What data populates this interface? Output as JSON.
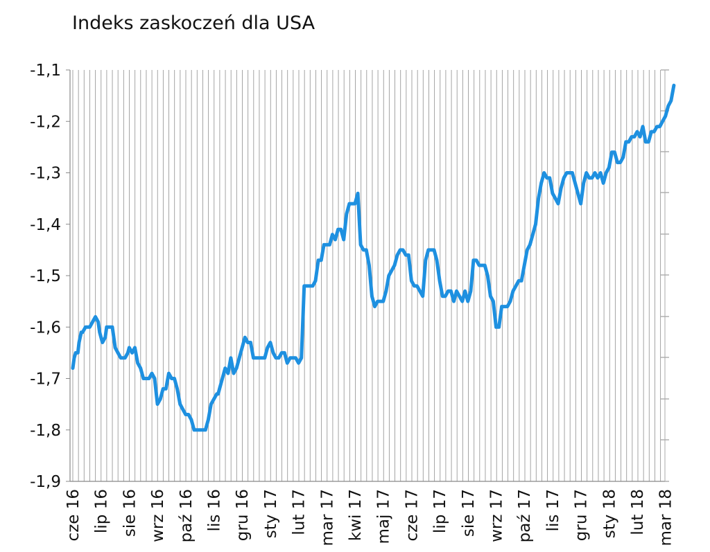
{
  "chart_data": {
    "type": "line",
    "title": "Indeks zaskoczeń dla USA",
    "xlabel": "",
    "ylabel": "",
    "ylim": [
      -1.9,
      -1.1
    ],
    "yticks": [
      "-1,1",
      "-1,2",
      "-1,3",
      "-1,4",
      "-1,5",
      "-1,6",
      "-1,7",
      "-1,8",
      "-1,9"
    ],
    "xticks": [
      "cze 16",
      "lip 16",
      "sie 16",
      "wrz 16",
      "paź 16",
      "lis 16",
      "gru 16",
      "sty 17",
      "lut 17",
      "mar 17",
      "kwi 17",
      "maj 17",
      "cze 17",
      "lip 17",
      "sie 17",
      "wrz 17",
      "paź 17",
      "lis 17",
      "gru 17",
      "sty 18",
      "lut 18",
      "mar 18"
    ],
    "grid": "vertical",
    "line_color": "#1e90e0",
    "x": [
      0,
      0.05,
      0.1,
      0.18,
      0.22,
      0.3,
      0.35,
      0.45,
      0.5,
      0.6,
      0.7,
      0.8,
      0.9,
      0.95,
      1.0,
      1.05,
      1.15,
      1.2,
      1.3,
      1.4,
      1.5,
      1.6,
      1.7,
      1.75,
      1.85,
      1.95,
      2.0,
      2.1,
      2.2,
      2.3,
      2.4,
      2.5,
      2.6,
      2.7,
      2.8,
      2.9,
      3.0,
      3.1,
      3.15,
      3.2,
      3.3,
      3.4,
      3.5,
      3.6,
      3.7,
      3.8,
      3.9,
      4.0,
      4.1,
      4.2,
      4.3,
      4.4,
      4.5,
      4.6,
      4.7,
      4.8,
      4.9,
      5.0,
      5.1,
      5.15,
      5.2,
      5.3,
      5.4,
      5.5,
      5.6,
      5.7,
      5.8,
      5.9,
      6.0,
      6.1,
      6.2,
      6.3,
      6.4,
      6.5,
      6.6,
      6.7,
      6.8,
      6.9,
      7.0,
      7.1,
      7.2,
      7.3,
      7.4,
      7.5,
      7.55,
      7.6,
      7.7,
      7.8,
      7.9,
      8.0,
      8.1,
      8.2,
      8.3,
      8.4,
      8.5,
      8.6,
      8.7,
      8.8,
      8.9,
      9.0,
      9.1,
      9.2,
      9.3,
      9.4,
      9.5,
      9.6,
      9.7,
      9.8,
      9.9,
      10.0,
      10.1,
      10.2,
      10.3,
      10.4,
      10.5,
      10.6,
      10.7,
      10.8,
      10.9,
      11.0,
      11.1,
      11.2,
      11.3,
      11.4,
      11.5,
      11.6,
      11.7,
      11.8,
      11.9,
      12.0,
      12.1,
      12.2,
      12.3,
      12.4,
      12.5,
      12.6,
      12.7,
      12.8,
      12.9,
      13.0,
      13.1,
      13.2,
      13.3,
      13.4,
      13.5,
      13.6,
      13.7,
      13.8,
      13.9,
      14.0,
      14.1,
      14.2,
      14.3,
      14.4,
      14.5,
      14.6,
      14.7,
      14.8,
      14.9,
      15.0,
      15.1,
      15.2,
      15.3,
      15.4,
      15.5,
      15.6,
      15.7,
      15.8,
      15.9,
      16.0,
      16.1,
      16.2,
      16.3,
      16.4,
      16.5,
      16.6,
      16.7,
      16.8,
      16.9,
      17.0,
      17.1,
      17.2,
      17.3,
      17.4,
      17.5,
      17.6,
      17.7,
      17.8,
      17.9,
      18.0,
      18.1,
      18.2,
      18.3,
      18.4,
      18.5,
      18.6,
      18.7,
      18.8,
      18.9,
      19.0,
      19.1,
      19.2,
      19.3,
      19.4,
      19.5,
      19.6,
      19.7,
      19.8,
      19.9,
      20.0,
      20.1,
      20.2,
      20.3,
      20.4,
      20.5,
      20.6,
      20.7,
      20.8,
      20.9,
      21.0,
      21.1,
      21.2,
      21.3
    ],
    "values": [
      -1.68,
      -1.66,
      -1.65,
      -1.65,
      -1.63,
      -1.61,
      -1.61,
      -1.6,
      -1.6,
      -1.6,
      -1.59,
      -1.58,
      -1.59,
      -1.61,
      -1.62,
      -1.63,
      -1.62,
      -1.6,
      -1.6,
      -1.6,
      -1.64,
      -1.65,
      -1.66,
      -1.66,
      -1.66,
      -1.65,
      -1.64,
      -1.65,
      -1.64,
      -1.67,
      -1.68,
      -1.7,
      -1.7,
      -1.7,
      -1.69,
      -1.7,
      -1.75,
      -1.74,
      -1.73,
      -1.72,
      -1.72,
      -1.69,
      -1.7,
      -1.7,
      -1.72,
      -1.75,
      -1.76,
      -1.77,
      -1.77,
      -1.78,
      -1.8,
      -1.8,
      -1.8,
      -1.8,
      -1.8,
      -1.78,
      -1.75,
      -1.74,
      -1.73,
      -1.73,
      -1.72,
      -1.7,
      -1.68,
      -1.69,
      -1.66,
      -1.69,
      -1.68,
      -1.66,
      -1.64,
      -1.62,
      -1.63,
      -1.63,
      -1.66,
      -1.66,
      -1.66,
      -1.66,
      -1.66,
      -1.64,
      -1.63,
      -1.65,
      -1.66,
      -1.66,
      -1.65,
      -1.65,
      -1.66,
      -1.67,
      -1.66,
      -1.66,
      -1.66,
      -1.67,
      -1.66,
      -1.52,
      -1.52,
      -1.52,
      -1.52,
      -1.51,
      -1.47,
      -1.47,
      -1.44,
      -1.44,
      -1.44,
      -1.42,
      -1.43,
      -1.41,
      -1.41,
      -1.43,
      -1.38,
      -1.36,
      -1.36,
      -1.36,
      -1.34,
      -1.44,
      -1.45,
      -1.45,
      -1.48,
      -1.54,
      -1.56,
      -1.55,
      -1.55,
      -1.55,
      -1.53,
      -1.5,
      -1.49,
      -1.48,
      -1.46,
      -1.45,
      -1.45,
      -1.46,
      -1.46,
      -1.51,
      -1.52,
      -1.52,
      -1.53,
      -1.54,
      -1.47,
      -1.45,
      -1.45,
      -1.45,
      -1.47,
      -1.51,
      -1.54,
      -1.54,
      -1.53,
      -1.53,
      -1.55,
      -1.53,
      -1.54,
      -1.55,
      -1.53,
      -1.55,
      -1.53,
      -1.47,
      -1.47,
      -1.48,
      -1.48,
      -1.48,
      -1.5,
      -1.54,
      -1.55,
      -1.6,
      -1.6,
      -1.56,
      -1.56,
      -1.56,
      -1.55,
      -1.53,
      -1.52,
      -1.51,
      -1.51,
      -1.48,
      -1.45,
      -1.44,
      -1.42,
      -1.4,
      -1.35,
      -1.32,
      -1.3,
      -1.31,
      -1.31,
      -1.34,
      -1.35,
      -1.36,
      -1.33,
      -1.31,
      -1.3,
      -1.3,
      -1.3,
      -1.32,
      -1.34,
      -1.36,
      -1.32,
      -1.3,
      -1.31,
      -1.31,
      -1.3,
      -1.31,
      -1.3,
      -1.32,
      -1.3,
      -1.29,
      -1.26,
      -1.26,
      -1.28,
      -1.28,
      -1.27,
      -1.24,
      -1.24,
      -1.23,
      -1.23,
      -1.22,
      -1.23,
      -1.21,
      -1.24,
      -1.24,
      -1.22,
      -1.22,
      -1.21,
      -1.21,
      -1.2,
      -1.19,
      -1.17,
      -1.16,
      -1.13
    ]
  }
}
